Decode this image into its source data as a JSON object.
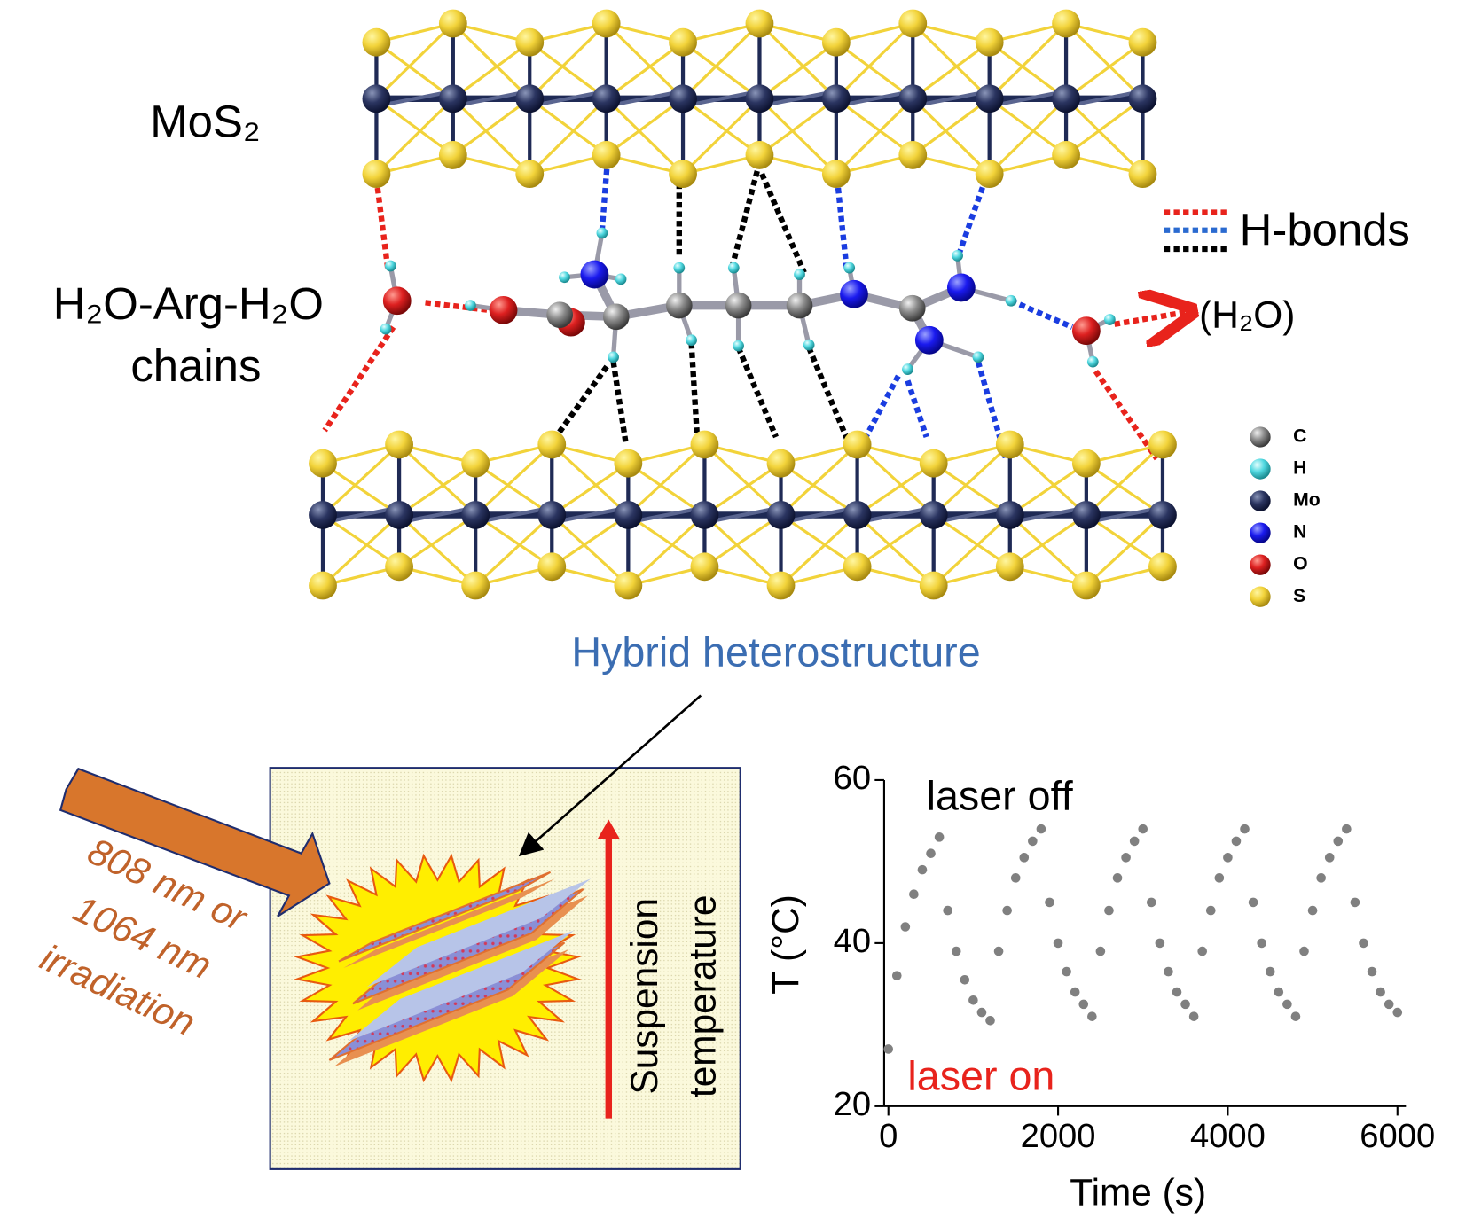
{
  "labels": {
    "mos2": "MoS₂",
    "chain_line1": "H₂O-Arg-H₂O",
    "chain_line2": "chains",
    "hbonds": "H-bonds",
    "water": "(H₂O)",
    "hybrid": "Hybrid heterostructure",
    "irradiation": [
      "808 nm or",
      "1064 nm",
      "irradiation"
    ],
    "suspension": [
      "Suspension",
      "temperature"
    ]
  },
  "atom_legend": [
    "C",
    "H",
    "Mo",
    "N",
    "O",
    "S"
  ],
  "chart_data": {
    "type": "scatter",
    "x_label": "Time (s)",
    "y_label": "T (°C)",
    "annotations": [
      "laser off",
      "laser on"
    ],
    "color": "#808080",
    "x": [
      0,
      100,
      200,
      300,
      400,
      500,
      600,
      700,
      800,
      900,
      1000,
      1100,
      1200,
      1300,
      1400,
      1500,
      1600,
      1700,
      1800,
      1900,
      2000,
      2100,
      2200,
      2300,
      2400,
      2500,
      2600,
      2700,
      2800,
      2900,
      3000,
      3100,
      3200,
      3300,
      3400,
      3500,
      3600,
      3700,
      3800,
      3900,
      4000,
      4100,
      4200,
      4300,
      4400,
      4500,
      4600,
      4700,
      4800,
      4900,
      5000,
      5100,
      5200,
      5300,
      5400,
      5500,
      5600,
      5700,
      5800,
      5900,
      6000
    ],
    "values": [
      27,
      36,
      42,
      46,
      49,
      51,
      53,
      44,
      39,
      35.5,
      33,
      31.5,
      30.5,
      39,
      44,
      48,
      50.5,
      52.5,
      54,
      45,
      40,
      36.5,
      34,
      32.5,
      31,
      39,
      44,
      48,
      50.5,
      52.5,
      54,
      45,
      40,
      36.5,
      34,
      32.5,
      31,
      39,
      44,
      48,
      50.5,
      52.5,
      54,
      45,
      40,
      36.5,
      34,
      32.5,
      31,
      39,
      44,
      48,
      50.5,
      52.5,
      54,
      45,
      40,
      36.5,
      34,
      32.5,
      31.5
    ],
    "xlim": [
      -50,
      6100
    ],
    "ylim": [
      20,
      60
    ],
    "xticks": [
      0,
      2000,
      4000,
      6000
    ],
    "yticks": [
      20,
      40,
      60
    ]
  }
}
